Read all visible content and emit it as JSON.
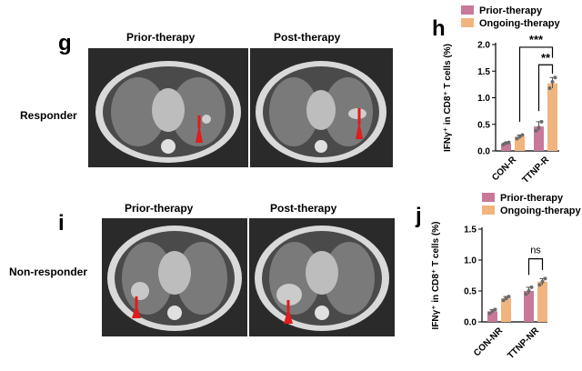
{
  "colors": {
    "prior": "#c8799a",
    "ongoing": "#f2b47e",
    "point": "#6b6b6b"
  },
  "panels": {
    "g": {
      "letter": "g",
      "col1": "Prior-therapy",
      "col2": "Post-therapy",
      "row": "Responder"
    },
    "i": {
      "letter": "i",
      "col1": "Prior-therapy",
      "col2": "Post-therapy",
      "row": "Non-responder"
    },
    "h": {
      "letter": "h"
    },
    "j": {
      "letter": "j"
    }
  },
  "chart_data": [
    {
      "id": "h",
      "type": "bar",
      "ylabel": "IFNγ⁺ in CD8⁺ T cells (%)",
      "ylim": [
        0,
        2.0
      ],
      "yticks": [
        "0.0",
        "0.5",
        "1.0",
        "1.5",
        "2.0"
      ],
      "categories": [
        "CON-R",
        "TTNP-R"
      ],
      "series": [
        {
          "name": "Prior-therapy",
          "values": [
            0.14,
            0.46
          ],
          "points": [
            [
              0.12,
              0.15,
              0.16
            ],
            [
              0.38,
              0.44,
              0.55
            ]
          ]
        },
        {
          "name": "Ongoing-therapy",
          "values": [
            0.27,
            1.27
          ],
          "points": [
            [
              0.23,
              0.27,
              0.3
            ],
            [
              1.18,
              1.3,
              1.38
            ]
          ]
        }
      ],
      "annotations": [
        {
          "text": "***"
        },
        {
          "text": "**"
        }
      ],
      "legend": "top"
    },
    {
      "id": "j",
      "type": "bar",
      "ylabel": "IFNγ⁺ in CD8⁺ T cells (%)",
      "ylim": [
        0,
        1.5
      ],
      "yticks": [
        "0.0",
        "0.5",
        "1.0",
        "1.5"
      ],
      "categories": [
        "CON-NR",
        "TTNP-NR"
      ],
      "series": [
        {
          "name": "Prior-therapy",
          "values": [
            0.17,
            0.5
          ],
          "points": [
            [
              0.14,
              0.18,
              0.2
            ],
            [
              0.45,
              0.5,
              0.56
            ]
          ]
        },
        {
          "name": "Ongoing-therapy",
          "values": [
            0.38,
            0.65
          ],
          "points": [
            [
              0.35,
              0.38,
              0.41
            ],
            [
              0.6,
              0.65,
              0.7
            ]
          ]
        }
      ],
      "annotations": [
        {
          "text": "ns"
        }
      ],
      "legend": "top"
    }
  ]
}
